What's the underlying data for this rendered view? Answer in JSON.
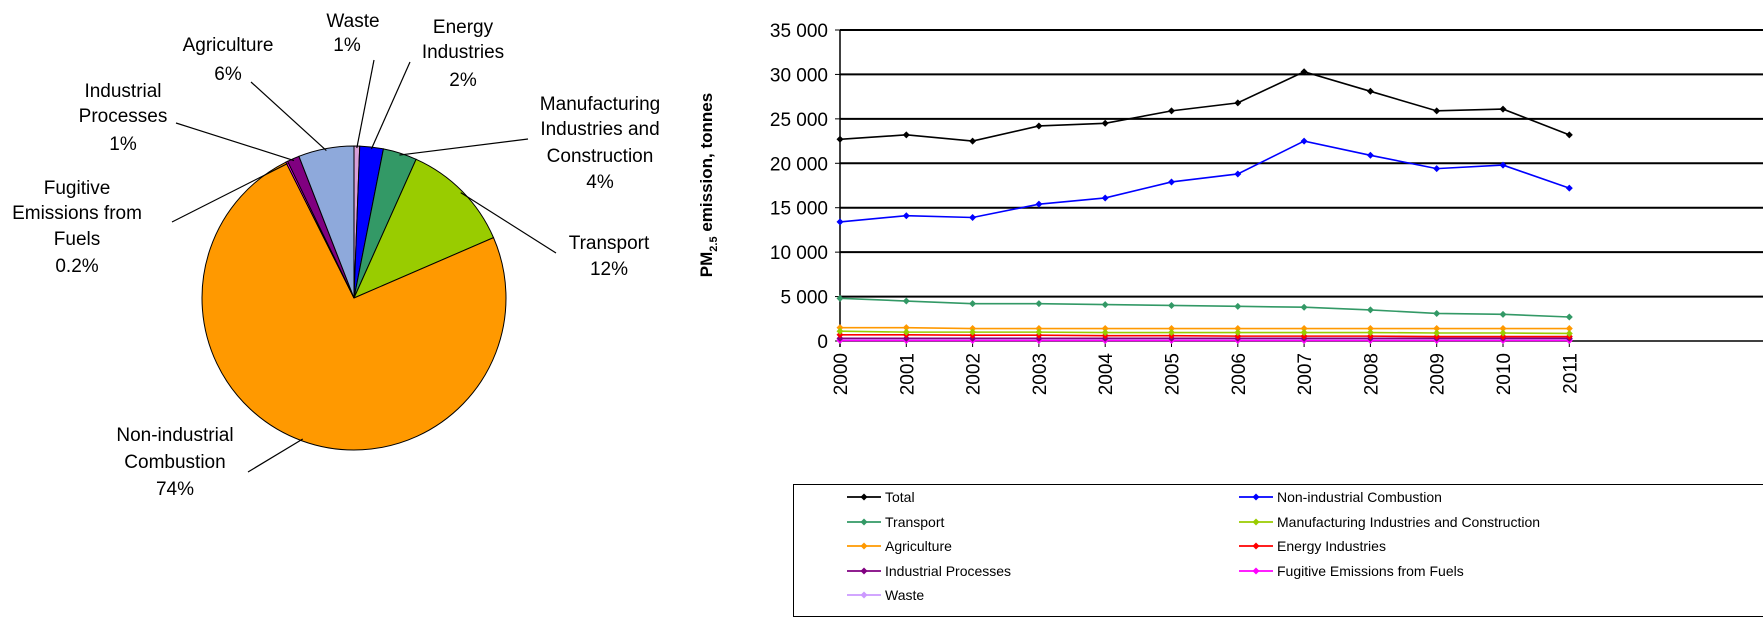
{
  "chart_data": [
    {
      "type": "pie",
      "slices": [
        {
          "label": [
            "Waste"
          ],
          "pct_label": "1%",
          "value": 0.6,
          "color": "#d9a0d9"
        },
        {
          "label": [
            "Energy",
            "Industries"
          ],
          "pct_label": "2%",
          "value": 2.5,
          "color": "#0000ff"
        },
        {
          "label": [
            "Manufacturing",
            "Industries and",
            "Construction"
          ],
          "pct_label": "4%",
          "value": 3.6,
          "color": "#339966"
        },
        {
          "label": [
            "Transport"
          ],
          "pct_label": "12%",
          "value": 11.8,
          "color": "#99cc00"
        },
        {
          "label": [
            "Non-industrial",
            "Combustion"
          ],
          "pct_label": "74%",
          "value": 74.1,
          "color": "#ff9900"
        },
        {
          "label": [
            "Fugitive",
            "Emissions from",
            "Fuels"
          ],
          "pct_label": "0.2%",
          "value": 0.2,
          "color": "#ff00ff"
        },
        {
          "label": [
            "Industrial",
            "Processes"
          ],
          "pct_label": "1%",
          "value": 1.3,
          "color": "#800080"
        },
        {
          "label": [
            "Agriculture"
          ],
          "pct_label": "6%",
          "value": 5.9,
          "color": "#8ea9db"
        }
      ]
    },
    {
      "type": "line",
      "ylabel": "PM2.5 emission, tonnes",
      "ylim": [
        0,
        35000
      ],
      "yticks": [
        0,
        5000,
        10000,
        15000,
        20000,
        25000,
        30000,
        35000
      ],
      "ytick_labels": [
        "0",
        "5 000",
        "10 000",
        "15 000",
        "20 000",
        "25 000",
        "30 000",
        "35 000"
      ],
      "x": [
        "2000",
        "2001",
        "2002",
        "2003",
        "2004",
        "2005",
        "2006",
        "2007",
        "2008",
        "2009",
        "2010",
        "2011"
      ],
      "grid": "horizontal",
      "legend_position": "bottom",
      "series": [
        {
          "name": "Total",
          "color": "#000000",
          "values": [
            22700,
            23200,
            22500,
            24200,
            24500,
            25900,
            26800,
            30300,
            28100,
            25900,
            26100,
            23200
          ]
        },
        {
          "name": "Non-industrial Combustion",
          "color": "#0000ff",
          "values": [
            13400,
            14100,
            13900,
            15400,
            16100,
            17900,
            18800,
            22500,
            20900,
            19400,
            19800,
            17200
          ]
        },
        {
          "name": "Transport",
          "color": "#339966",
          "values": [
            4800,
            4500,
            4200,
            4200,
            4100,
            4000,
            3900,
            3800,
            3500,
            3100,
            3000,
            2700
          ]
        },
        {
          "name": "Manufacturing Industries and Construction",
          "color": "#99cc00",
          "values": [
            1100,
            1000,
            1000,
            1000,
            950,
            950,
            950,
            950,
            950,
            900,
            900,
            850
          ]
        },
        {
          "name": "Agriculture",
          "color": "#ff9900",
          "values": [
            1500,
            1500,
            1400,
            1400,
            1400,
            1400,
            1400,
            1400,
            1400,
            1400,
            1400,
            1400
          ]
        },
        {
          "name": "Energy Industries",
          "color": "#ff0000",
          "values": [
            700,
            700,
            650,
            650,
            600,
            600,
            550,
            550,
            550,
            500,
            500,
            500
          ]
        },
        {
          "name": "Industrial Processes",
          "color": "#800080",
          "values": [
            300,
            300,
            300,
            300,
            300,
            300,
            300,
            300,
            300,
            300,
            300,
            300
          ]
        },
        {
          "name": "Fugitive Emissions from Fuels",
          "color": "#ff00ff",
          "values": [
            50,
            50,
            50,
            50,
            50,
            50,
            50,
            50,
            50,
            50,
            50,
            50
          ]
        },
        {
          "name": "Waste",
          "color": "#cc99ff",
          "values": [
            150,
            150,
            150,
            150,
            150,
            150,
            150,
            150,
            150,
            150,
            150,
            150
          ]
        }
      ]
    }
  ]
}
